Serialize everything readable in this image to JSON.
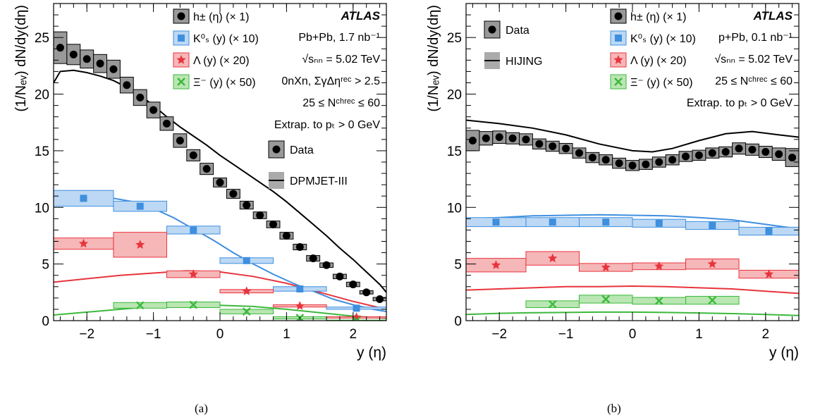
{
  "panels": [
    {
      "caption": "(a)",
      "experiment": "ATLAS",
      "info_lines": [
        "Pb+Pb, 1.7 nb⁻¹",
        "√sₙₙ = 5.02 TeV",
        "0nXn, ΣγΔηʳᵉᶜ > 2.5",
        "25 ≤ Nᶜʰʳᵉᶜ ≤ 60",
        "Extrap. to pₜ > 0 GeV"
      ],
      "model_label": "DPMJET-III",
      "data_label": "Data"
    },
    {
      "caption": "(b)",
      "experiment": "ATLAS",
      "info_lines": [
        "p+Pb, 0.1 nb⁻¹",
        "√sₙₙ = 5.02 TeV",
        "25 ≤ Nᶜʰʳᵉᶜ ≤ 60",
        "Extrap. to pₜ > 0 GeV"
      ],
      "model_label": "HIJING",
      "data_label": "Data"
    }
  ],
  "chart_data": [
    {
      "type": "scatter",
      "xlabel": "y (η)",
      "ylabel": "(1/Nₑᵥ) dN/dy(dη)",
      "xlim": [
        -2.5,
        2.5
      ],
      "ylim": [
        0,
        28
      ],
      "x_ticks": [
        -2,
        -1,
        0,
        1,
        2
      ],
      "y_ticks": [
        0,
        5,
        10,
        15,
        20,
        25
      ],
      "series": [
        {
          "name": "h± (η) (× 1)",
          "color": "#000000",
          "box": "#999999",
          "marker": "circle",
          "x": [
            -2.4,
            -2.2,
            -2.0,
            -1.8,
            -1.6,
            -1.4,
            -1.2,
            -1.0,
            -0.8,
            -0.6,
            -0.4,
            -0.2,
            0.0,
            0.2,
            0.4,
            0.6,
            0.8,
            1.0,
            1.2,
            1.4,
            1.6,
            1.8,
            2.0,
            2.2,
            2.4
          ],
          "y": [
            24.1,
            23.5,
            23.1,
            22.7,
            22.2,
            20.8,
            19.7,
            18.6,
            17.4,
            15.9,
            14.6,
            13.4,
            12.2,
            11.2,
            10.2,
            9.3,
            8.5,
            7.5,
            6.5,
            5.5,
            4.9,
            3.9,
            3.2,
            2.5,
            1.9
          ],
          "err": [
            1.4,
            0.9,
            0.8,
            0.8,
            0.8,
            0.7,
            0.7,
            0.7,
            0.6,
            0.6,
            0.5,
            0.5,
            0.4,
            0.4,
            0.35,
            0.3,
            0.3,
            0.3,
            0.25,
            0.25,
            0.2,
            0.2,
            0.2,
            0.15,
            0.15
          ],
          "halfwidth": 0.1
        },
        {
          "name": "K⁰ₛ (y) (× 10)",
          "color": "#3f8fdf",
          "box": "#bcd8f4",
          "marker": "square",
          "x": [
            -2.05,
            -1.2,
            -0.4,
            0.4,
            1.2,
            2.05
          ],
          "y": [
            10.8,
            10.1,
            8.0,
            5.3,
            2.8,
            1.1
          ],
          "err": [
            0.7,
            0.45,
            0.35,
            0.25,
            0.2,
            0.1
          ],
          "halfwidths": [
            0.45,
            0.4,
            0.4,
            0.4,
            0.4,
            0.45
          ]
        },
        {
          "name": "Λ (y) (× 20)",
          "color": "#e8343c",
          "box": "#f6b7b9",
          "marker": "star",
          "x": [
            -2.05,
            -1.2,
            -0.4,
            0.4,
            1.2,
            2.05
          ],
          "y": [
            6.8,
            6.7,
            4.1,
            2.6,
            1.3,
            0.3
          ],
          "err": [
            0.5,
            1.1,
            0.3,
            0.15,
            0.1,
            0.05
          ],
          "halfwidths": [
            0.45,
            0.4,
            0.4,
            0.4,
            0.4,
            0.45
          ]
        },
        {
          "name": "Ξ⁻ (y) (× 50)",
          "color": "#3cb83c",
          "box": "#b9e6b2",
          "marker": "cross-square",
          "x": [
            -1.2,
            -0.4,
            0.4,
            1.2,
            2.05
          ],
          "y": [
            1.35,
            1.4,
            0.8,
            0.25,
            0.0
          ],
          "err": [
            0.25,
            0.25,
            0.2,
            0.1,
            0.05
          ],
          "halfwidths": [
            0.4,
            0.4,
            0.4,
            0.4,
            0.45
          ]
        }
      ],
      "model_curves": [
        {
          "color": "#000000",
          "x": [
            -2.5,
            -2.4,
            -2.2,
            -2.0,
            -1.8,
            -1.6,
            -1.4,
            -1.2,
            -1.0,
            -0.8,
            -0.6,
            -0.4,
            -0.2,
            0.0,
            0.2,
            0.4,
            0.6,
            0.8,
            1.0,
            1.2,
            1.4,
            1.6,
            1.8,
            2.0,
            2.2,
            2.4,
            2.5
          ],
          "y": [
            21.0,
            22.0,
            22.1,
            21.9,
            21.6,
            21.2,
            20.6,
            19.9,
            19.0,
            18.0,
            17.1,
            16.3,
            15.5,
            14.6,
            13.8,
            13.0,
            12.2,
            11.4,
            10.5,
            9.5,
            8.5,
            7.5,
            6.4,
            5.4,
            4.3,
            3.2,
            2.5
          ]
        },
        {
          "color": "#3f8fdf",
          "x": [
            -2.5,
            -2.2,
            -1.9,
            -1.6,
            -1.3,
            -1.0,
            -0.7,
            -0.4,
            -0.1,
            0.2,
            0.5,
            0.8,
            1.1,
            1.4,
            1.7,
            2.0,
            2.3,
            2.5
          ],
          "y": [
            10.6,
            10.8,
            10.9,
            10.8,
            10.5,
            9.9,
            9.1,
            8.1,
            7.1,
            6.0,
            5.0,
            4.1,
            3.3,
            2.6,
            1.9,
            1.4,
            1.0,
            0.8
          ]
        },
        {
          "color": "#e8343c",
          "x": [
            -2.5,
            -2.0,
            -1.5,
            -1.0,
            -0.5,
            0.0,
            0.5,
            1.0,
            1.5,
            2.0,
            2.5
          ],
          "y": [
            3.4,
            3.7,
            4.0,
            4.2,
            4.4,
            4.3,
            3.9,
            3.3,
            2.5,
            1.7,
            1.0
          ]
        },
        {
          "color": "#3cb83c",
          "x": [
            -2.5,
            -2.0,
            -1.5,
            -1.0,
            -0.5,
            0.0,
            0.5,
            1.0,
            1.5,
            2.0,
            2.5
          ],
          "y": [
            0.5,
            0.75,
            1.0,
            1.25,
            1.35,
            1.35,
            1.25,
            1.0,
            0.7,
            0.4,
            0.2
          ]
        }
      ]
    },
    {
      "type": "scatter",
      "xlabel": "y (η)",
      "ylabel": "(1/Nₑᵥ) dN/dy(dη)",
      "xlim": [
        -2.5,
        2.5
      ],
      "ylim": [
        0,
        28
      ],
      "x_ticks": [
        -2,
        -1,
        0,
        1,
        2
      ],
      "y_ticks": [
        0,
        5,
        10,
        15,
        20,
        25
      ],
      "series": [
        {
          "name": "h± (η) (× 1)",
          "color": "#000000",
          "box": "#999999",
          "marker": "circle",
          "x": [
            -2.4,
            -2.2,
            -2.0,
            -1.8,
            -1.6,
            -1.4,
            -1.2,
            -1.0,
            -0.8,
            -0.6,
            -0.4,
            -0.2,
            0.0,
            0.2,
            0.4,
            0.6,
            0.8,
            1.0,
            1.2,
            1.4,
            1.6,
            1.8,
            2.0,
            2.2,
            2.4
          ],
          "y": [
            15.9,
            16.1,
            16.2,
            16.1,
            16.0,
            15.6,
            15.4,
            15.2,
            14.8,
            14.4,
            14.2,
            13.9,
            13.7,
            13.8,
            14.0,
            14.2,
            14.5,
            14.6,
            14.8,
            14.9,
            15.2,
            15.1,
            14.9,
            14.7,
            14.4
          ],
          "err": [
            0.9,
            0.6,
            0.55,
            0.5,
            0.5,
            0.45,
            0.45,
            0.45,
            0.45,
            0.45,
            0.45,
            0.45,
            0.45,
            0.45,
            0.45,
            0.45,
            0.45,
            0.45,
            0.45,
            0.45,
            0.5,
            0.5,
            0.5,
            0.55,
            0.8
          ],
          "halfwidth": 0.1
        },
        {
          "name": "K⁰ₛ (y) (× 10)",
          "color": "#3f8fdf",
          "box": "#bcd8f4",
          "marker": "square",
          "x": [
            -2.05,
            -1.2,
            -0.4,
            0.4,
            1.2,
            2.05
          ],
          "y": [
            8.7,
            8.7,
            8.7,
            8.6,
            8.4,
            7.9
          ],
          "err": [
            0.4,
            0.4,
            0.4,
            0.35,
            0.35,
            0.35
          ],
          "halfwidths": [
            0.45,
            0.4,
            0.4,
            0.4,
            0.4,
            0.45
          ]
        },
        {
          "name": "Λ (y) (× 20)",
          "color": "#e8343c",
          "box": "#f6b7b9",
          "marker": "star",
          "x": [
            -2.05,
            -1.2,
            -0.4,
            0.4,
            1.2,
            2.05
          ],
          "y": [
            4.9,
            5.5,
            4.7,
            4.8,
            5.0,
            4.1
          ],
          "err": [
            0.6,
            0.6,
            0.35,
            0.3,
            0.45,
            0.35
          ],
          "halfwidths": [
            0.45,
            0.4,
            0.4,
            0.4,
            0.4,
            0.45
          ]
        },
        {
          "name": "Ξ⁻ (y) (× 50)",
          "color": "#3cb83c",
          "box": "#b9e6b2",
          "marker": "cross-square",
          "x": [
            -1.2,
            -0.4,
            0.4,
            1.2
          ],
          "y": [
            1.45,
            1.9,
            1.75,
            1.8
          ],
          "err": [
            0.3,
            0.35,
            0.3,
            0.35
          ],
          "halfwidths": [
            0.4,
            0.4,
            0.4,
            0.4
          ]
        }
      ],
      "model_curves": [
        {
          "color": "#000000",
          "x": [
            -2.5,
            -2.0,
            -1.5,
            -1.0,
            -0.5,
            0.0,
            0.3,
            0.6,
            1.0,
            1.4,
            1.8,
            2.2,
            2.5
          ],
          "y": [
            17.7,
            17.4,
            17.0,
            16.4,
            15.6,
            15.0,
            14.9,
            15.2,
            15.9,
            16.5,
            16.7,
            16.4,
            16.2
          ]
        },
        {
          "color": "#3f8fdf",
          "x": [
            -2.5,
            -2.0,
            -1.5,
            -1.0,
            -0.5,
            0.0,
            0.5,
            1.0,
            1.5,
            2.0,
            2.5
          ],
          "y": [
            9.0,
            9.1,
            9.25,
            9.3,
            9.35,
            9.3,
            9.25,
            9.1,
            8.9,
            8.5,
            8.1
          ]
        },
        {
          "color": "#e8343c",
          "x": [
            -2.5,
            -2.0,
            -1.5,
            -1.0,
            -0.5,
            0.0,
            0.5,
            1.0,
            1.5,
            2.0,
            2.5
          ],
          "y": [
            2.7,
            2.8,
            2.9,
            3.0,
            3.0,
            3.05,
            3.0,
            2.9,
            2.8,
            2.6,
            2.4
          ]
        },
        {
          "color": "#3cb83c",
          "x": [
            -2.5,
            -2.0,
            -1.5,
            -1.0,
            -0.5,
            0.0,
            0.5,
            1.0,
            1.5,
            2.0,
            2.5
          ],
          "y": [
            0.55,
            0.65,
            0.7,
            0.72,
            0.75,
            0.75,
            0.72,
            0.68,
            0.62,
            0.55,
            0.45
          ]
        }
      ]
    }
  ]
}
